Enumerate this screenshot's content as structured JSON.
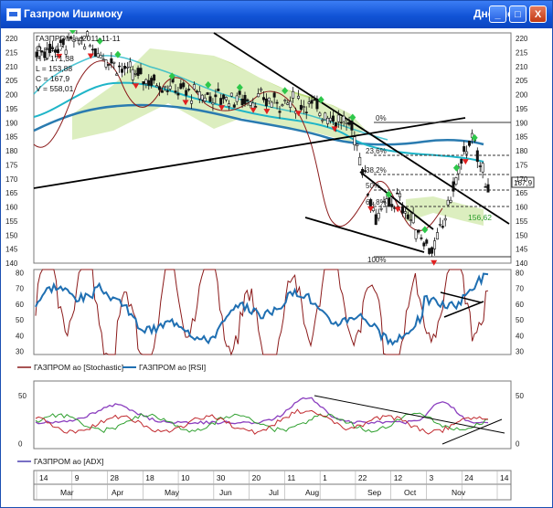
{
  "window": {
    "title": "Газпром Ишимоку",
    "period": "Дневной",
    "controls": {
      "minimize": "_",
      "maximize": "□",
      "close": "X"
    }
  },
  "price_panel": {
    "header": {
      "symbol": "ГАЗПРОМ ао",
      "date": "2011-11-11",
      "o": "O = 167",
      "h": "H = 171,38",
      "l": "L = 153,88",
      "c": "C = 167,9",
      "v": "V = 558,01"
    },
    "last_price_label": "167,9",
    "cloud_value_label": "156,62",
    "fib_labels": [
      "0%",
      "23,6%",
      "38,2%",
      "50%",
      "61,8%",
      "100%"
    ],
    "y_ticks": [
      220,
      215,
      210,
      205,
      200,
      195,
      190,
      185,
      180,
      175,
      170,
      165,
      160,
      155,
      150,
      145,
      140
    ]
  },
  "oscillator_panel": {
    "y_ticks": [
      80,
      70,
      60,
      50,
      40,
      30
    ],
    "legend": [
      {
        "label": "ГАЗПРОМ ао [Stochastic]",
        "color": "#8b1a1a"
      },
      {
        "label": "ГАЗПРОМ ао [RSI]",
        "color": "#1f6fb2"
      }
    ]
  },
  "adx_panel": {
    "y_ticks": [
      50,
      0
    ],
    "legend": [
      {
        "label": "ГАЗПРОМ ао [ADX]",
        "color": "#4b3fb0"
      }
    ]
  },
  "time_axis": {
    "days": [
      "14",
      "9",
      "28",
      "18",
      "10",
      "30",
      "20",
      "11",
      "1",
      "22",
      "12",
      "3",
      "24",
      "14"
    ],
    "months": [
      "Mar",
      "Apr",
      "May",
      "Jun",
      "Jul",
      "Aug",
      "Sep",
      "Oct",
      "Nov"
    ]
  },
  "chart_data": [
    {
      "type": "candlestick",
      "panel": "price",
      "ylim": [
        140,
        222
      ],
      "series": [
        {
          "name": "Close",
          "approx_path": [
            [
              0,
              215
            ],
            [
              10,
              220
            ],
            [
              20,
              208
            ],
            [
              35,
              200
            ],
            [
              50,
              198
            ],
            [
              60,
              197
            ],
            [
              70,
              188
            ],
            [
              75,
              157
            ],
            [
              80,
              163
            ],
            [
              85,
              150
            ],
            [
              88,
              144
            ],
            [
              92,
              165
            ],
            [
              96,
              185
            ],
            [
              100,
              168
            ]
          ]
        }
      ],
      "annotations": [
        "trend lines",
        "Ichimoku cloud",
        "Fibonacci retracement"
      ],
      "colors": {
        "cloud": "#9ccc3c",
        "tenkan": "#1fb5c8",
        "kijun": "#2a7bb0",
        "chikou": "#8b1a1a",
        "signals_up": "#2ec74a",
        "signals_down": "#e02020"
      }
    },
    {
      "type": "line",
      "panel": "oscillators",
      "ylim": [
        28,
        82
      ],
      "series": [
        {
          "name": "ГАЗПРОМ ао [Stochastic]"
        },
        {
          "name": "ГАЗПРОМ ао [RSI]"
        }
      ]
    },
    {
      "type": "line",
      "panel": "adx",
      "ylim": [
        -5,
        65
      ],
      "series": [
        {
          "name": "ГАЗПРОМ ао [ADX]"
        }
      ]
    }
  ]
}
